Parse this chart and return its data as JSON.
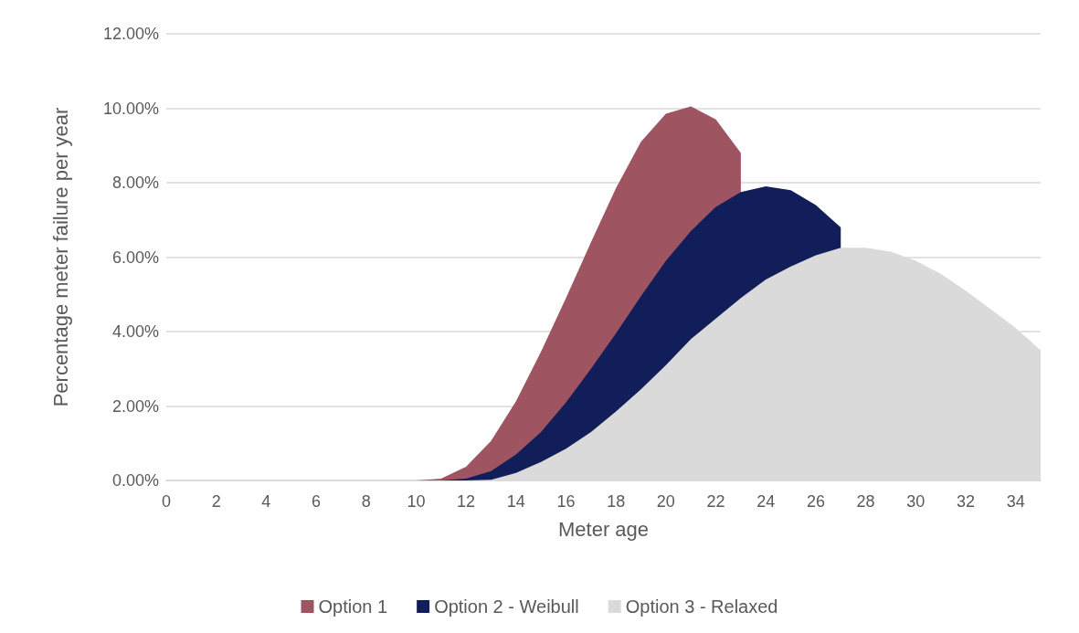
{
  "chart_data": {
    "type": "area",
    "xlabel": "Meter age",
    "ylabel": "Percentage meter failure per year",
    "x": [
      0,
      1,
      2,
      3,
      4,
      5,
      6,
      7,
      8,
      9,
      10,
      11,
      12,
      13,
      14,
      15,
      16,
      17,
      18,
      19,
      20,
      21,
      22,
      23,
      24,
      25,
      26,
      27,
      28,
      29,
      30,
      31,
      32,
      33,
      34,
      35
    ],
    "series": [
      {
        "name": "Option 1",
        "color": "#9e5561",
        "values": [
          0,
          0,
          0,
          0,
          0,
          0,
          0,
          0,
          0,
          0,
          0,
          0.05,
          0.37,
          1.06,
          2.13,
          3.46,
          4.9,
          6.4,
          7.85,
          9.1,
          9.85,
          10.05,
          9.7,
          8.8,
          null,
          null,
          null,
          null,
          null,
          null,
          null,
          null,
          null,
          null,
          null,
          null
        ]
      },
      {
        "name": "Option 2 - Weibull",
        "color": "#111e5a",
        "values": [
          0,
          0,
          0,
          0,
          0,
          0,
          0,
          0,
          0,
          0,
          0,
          0,
          0.05,
          0.25,
          0.7,
          1.3,
          2.1,
          3.0,
          3.95,
          4.95,
          5.9,
          6.7,
          7.35,
          7.75,
          7.9,
          7.8,
          7.4,
          6.8,
          null,
          null,
          null,
          null,
          null,
          null,
          null,
          null
        ]
      },
      {
        "name": "Option 3 - Relaxed",
        "color": "#dadada",
        "values": [
          0,
          0,
          0,
          0,
          0,
          0,
          0,
          0,
          0,
          0,
          0,
          0,
          0,
          0.02,
          0.2,
          0.5,
          0.85,
          1.3,
          1.85,
          2.45,
          3.1,
          3.8,
          4.35,
          4.9,
          5.4,
          5.75,
          6.05,
          6.25,
          6.25,
          6.15,
          5.9,
          5.55,
          5.1,
          4.6,
          4.1,
          3.5
        ]
      }
    ],
    "xlim": [
      0,
      35
    ],
    "xticks": [
      0,
      2,
      4,
      6,
      8,
      10,
      12,
      14,
      16,
      18,
      20,
      22,
      24,
      26,
      28,
      30,
      32,
      34
    ],
    "ylim": [
      0,
      12
    ],
    "yticks": [
      {
        "value": 0,
        "label": "0.00%"
      },
      {
        "value": 2,
        "label": "2.00%"
      },
      {
        "value": 4,
        "label": "4.00%"
      },
      {
        "value": 6,
        "label": "6.00%"
      },
      {
        "value": 8,
        "label": "8.00%"
      },
      {
        "value": 10,
        "label": "10.00%"
      },
      {
        "value": 12,
        "label": "12.00%"
      }
    ],
    "grid": "y",
    "legend": "bottom",
    "marker": "none"
  }
}
